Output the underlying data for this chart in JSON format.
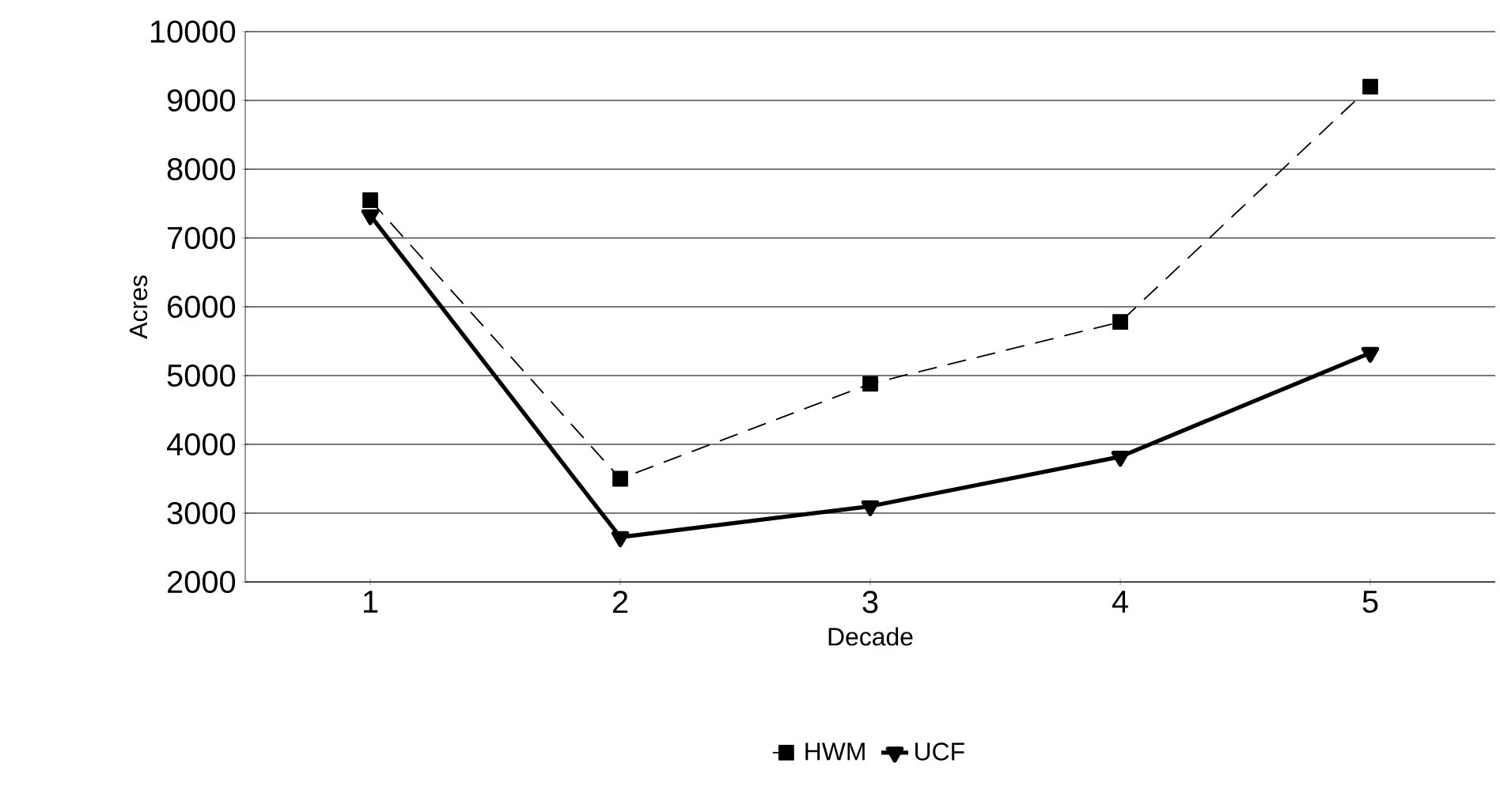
{
  "chart_data": {
    "type": "line",
    "xlabel": "Decade",
    "ylabel": "Acres",
    "categories": [
      "1",
      "2",
      "3",
      "4",
      "5"
    ],
    "series": [
      {
        "name": "HWM",
        "color": "#000000",
        "values": [
          7550,
          3500,
          4880,
          5780,
          9200
        ],
        "marker": "square",
        "line_style": "dashed"
      },
      {
        "name": "UCF",
        "color": "#000000",
        "values": [
          7330,
          2650,
          3100,
          3820,
          5330
        ],
        "marker": "triangle",
        "line_style": "solid"
      }
    ],
    "ylim": [
      2000,
      10000
    ],
    "yticks": [
      2000,
      3000,
      4000,
      5000,
      6000,
      7000,
      8000,
      9000,
      10000
    ],
    "grid": "y",
    "legend": "bottom"
  }
}
